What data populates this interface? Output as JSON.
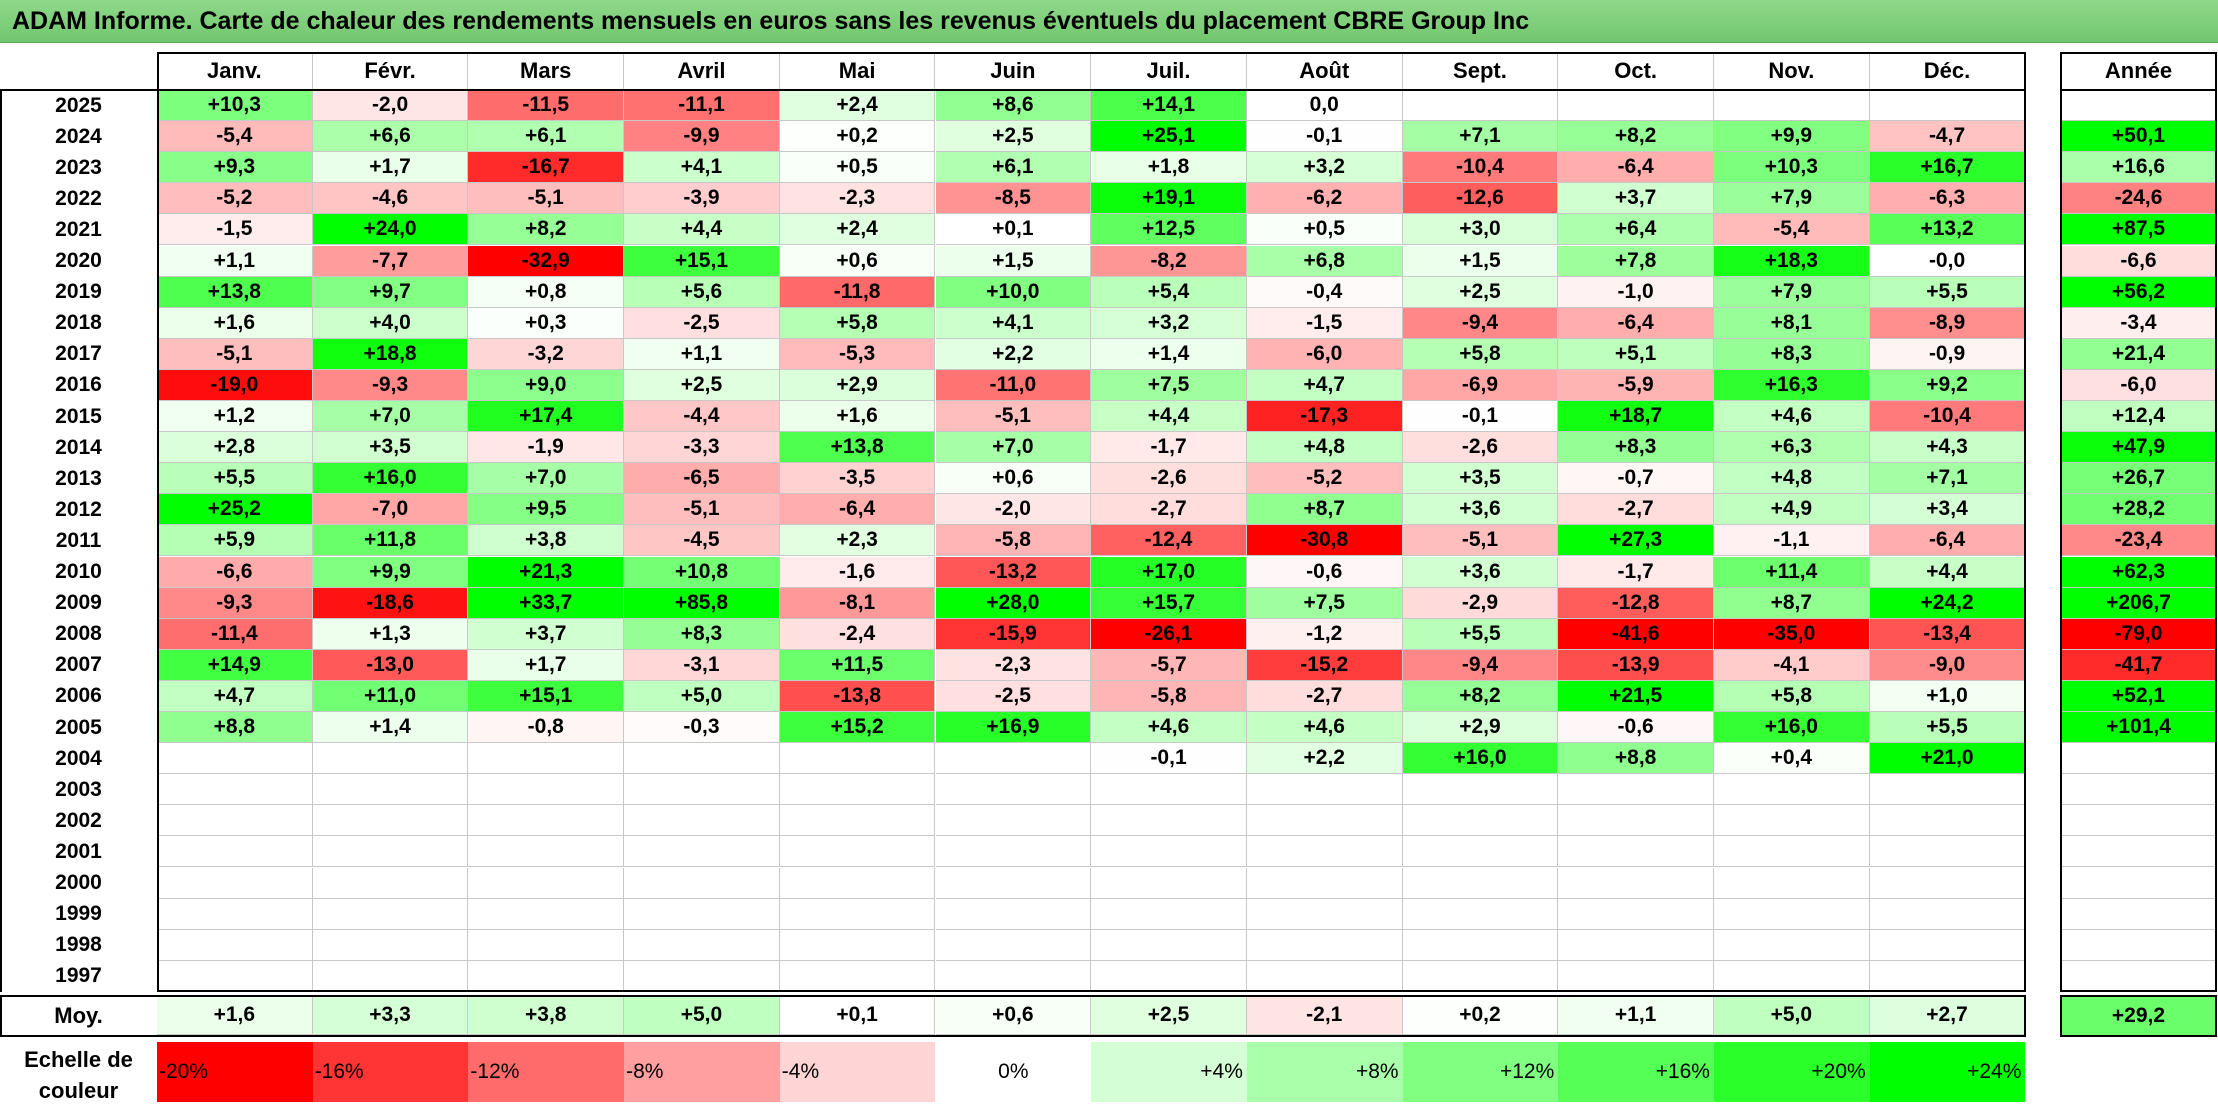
{
  "title": "ADAM Informe. Carte de chaleur des rendements mensuels en euros sans les revenus éventuels du placement CBRE Group Inc",
  "chart_data": {
    "type": "heatmap",
    "title": "ADAM Informe. Carte de chaleur des rendements mensuels en euros sans les revenus éventuels du placement CBRE Group Inc",
    "months": [
      "Janv.",
      "Févr.",
      "Mars",
      "Avril",
      "Mai",
      "Juin",
      "Juil.",
      "Août",
      "Sept.",
      "Oct.",
      "Nov.",
      "Déc."
    ],
    "year_header": "Année",
    "rows": [
      {
        "year": "2025",
        "values": [
          "+10,3",
          "-2,0",
          "-11,5",
          "-11,1",
          "+2,4",
          "+8,6",
          "+14,1",
          "0,0",
          "",
          "",
          "",
          ""
        ],
        "annual": ""
      },
      {
        "year": "2024",
        "values": [
          "-5,4",
          "+6,6",
          "+6,1",
          "-9,9",
          "+0,2",
          "+2,5",
          "+25,1",
          "-0,1",
          "+7,1",
          "+8,2",
          "+9,9",
          "-4,7"
        ],
        "annual": "+50,1"
      },
      {
        "year": "2023",
        "values": [
          "+9,3",
          "+1,7",
          "-16,7",
          "+4,1",
          "+0,5",
          "+6,1",
          "+1,8",
          "+3,2",
          "-10,4",
          "-6,4",
          "+10,3",
          "+16,7"
        ],
        "annual": "+16,6"
      },
      {
        "year": "2022",
        "values": [
          "-5,2",
          "-4,6",
          "-5,1",
          "-3,9",
          "-2,3",
          "-8,5",
          "+19,1",
          "-6,2",
          "-12,6",
          "+3,7",
          "+7,9",
          "-6,3"
        ],
        "annual": "-24,6"
      },
      {
        "year": "2021",
        "values": [
          "-1,5",
          "+24,0",
          "+8,2",
          "+4,4",
          "+2,4",
          "+0,1",
          "+12,5",
          "+0,5",
          "+3,0",
          "+6,4",
          "-5,4",
          "+13,2"
        ],
        "annual": "+87,5"
      },
      {
        "year": "2020",
        "values": [
          "+1,1",
          "-7,7",
          "-32,9",
          "+15,1",
          "+0,6",
          "+1,5",
          "-8,2",
          "+6,8",
          "+1,5",
          "+7,8",
          "+18,3",
          "-0,0"
        ],
        "annual": "-6,6"
      },
      {
        "year": "2019",
        "values": [
          "+13,8",
          "+9,7",
          "+0,8",
          "+5,6",
          "-11,8",
          "+10,0",
          "+5,4",
          "-0,4",
          "+2,5",
          "-1,0",
          "+7,9",
          "+5,5"
        ],
        "annual": "+56,2"
      },
      {
        "year": "2018",
        "values": [
          "+1,6",
          "+4,0",
          "+0,3",
          "-2,5",
          "+5,8",
          "+4,1",
          "+3,2",
          "-1,5",
          "-9,4",
          "-6,4",
          "+8,1",
          "-8,9"
        ],
        "annual": "-3,4"
      },
      {
        "year": "2017",
        "values": [
          "-5,1",
          "+18,8",
          "-3,2",
          "+1,1",
          "-5,3",
          "+2,2",
          "+1,4",
          "-6,0",
          "+5,8",
          "+5,1",
          "+8,3",
          "-0,9"
        ],
        "annual": "+21,4"
      },
      {
        "year": "2016",
        "values": [
          "-19,0",
          "-9,3",
          "+9,0",
          "+2,5",
          "+2,9",
          "-11,0",
          "+7,5",
          "+4,7",
          "-6,9",
          "-5,9",
          "+16,3",
          "+9,2"
        ],
        "annual": "-6,0"
      },
      {
        "year": "2015",
        "values": [
          "+1,2",
          "+7,0",
          "+17,4",
          "-4,4",
          "+1,6",
          "-5,1",
          "+4,4",
          "-17,3",
          "-0,1",
          "+18,7",
          "+4,6",
          "-10,4"
        ],
        "annual": "+12,4"
      },
      {
        "year": "2014",
        "values": [
          "+2,8",
          "+3,5",
          "-1,9",
          "-3,3",
          "+13,8",
          "+7,0",
          "-1,7",
          "+4,8",
          "-2,6",
          "+8,3",
          "+6,3",
          "+4,3"
        ],
        "annual": "+47,9"
      },
      {
        "year": "2013",
        "values": [
          "+5,5",
          "+16,0",
          "+7,0",
          "-6,5",
          "-3,5",
          "+0,6",
          "-2,6",
          "-5,2",
          "+3,5",
          "-0,7",
          "+4,8",
          "+7,1"
        ],
        "annual": "+26,7"
      },
      {
        "year": "2012",
        "values": [
          "+25,2",
          "-7,0",
          "+9,5",
          "-5,1",
          "-6,4",
          "-2,0",
          "-2,7",
          "+8,7",
          "+3,6",
          "-2,7",
          "+4,9",
          "+3,4"
        ],
        "annual": "+28,2"
      },
      {
        "year": "2011",
        "values": [
          "+5,9",
          "+11,8",
          "+3,8",
          "-4,5",
          "+2,3",
          "-5,8",
          "-12,4",
          "-30,8",
          "-5,1",
          "+27,3",
          "-1,1",
          "-6,4"
        ],
        "annual": "-23,4"
      },
      {
        "year": "2010",
        "values": [
          "-6,6",
          "+9,9",
          "+21,3",
          "+10,8",
          "-1,6",
          "-13,2",
          "+17,0",
          "-0,6",
          "+3,6",
          "-1,7",
          "+11,4",
          "+4,4"
        ],
        "annual": "+62,3"
      },
      {
        "year": "2009",
        "values": [
          "-9,3",
          "-18,6",
          "+33,7",
          "+85,8",
          "-8,1",
          "+28,0",
          "+15,7",
          "+7,5",
          "-2,9",
          "-12,8",
          "+8,7",
          "+24,2"
        ],
        "annual": "+206,7"
      },
      {
        "year": "2008",
        "values": [
          "-11,4",
          "+1,3",
          "+3,7",
          "+8,3",
          "-2,4",
          "-15,9",
          "-26,1",
          "-1,2",
          "+5,5",
          "-41,6",
          "-35,0",
          "-13,4"
        ],
        "annual": "-79,0"
      },
      {
        "year": "2007",
        "values": [
          "+14,9",
          "-13,0",
          "+1,7",
          "-3,1",
          "+11,5",
          "-2,3",
          "-5,7",
          "-15,2",
          "-9,4",
          "-13,9",
          "-4,1",
          "-9,0"
        ],
        "annual": "-41,7"
      },
      {
        "year": "2006",
        "values": [
          "+4,7",
          "+11,0",
          "+15,1",
          "+5,0",
          "-13,8",
          "-2,5",
          "-5,8",
          "-2,7",
          "+8,2",
          "+21,5",
          "+5,8",
          "+1,0"
        ],
        "annual": "+52,1"
      },
      {
        "year": "2005",
        "values": [
          "+8,8",
          "+1,4",
          "-0,8",
          "-0,3",
          "+15,2",
          "+16,9",
          "+4,6",
          "+4,6",
          "+2,9",
          "-0,6",
          "+16,0",
          "+5,5"
        ],
        "annual": "+101,4"
      },
      {
        "year": "2004",
        "values": [
          "",
          "",
          "",
          "",
          "",
          "",
          "-0,1",
          "+2,2",
          "+16,0",
          "+8,8",
          "+0,4",
          "+21,0"
        ],
        "annual": ""
      },
      {
        "year": "2003",
        "values": [
          "",
          "",
          "",
          "",
          "",
          "",
          "",
          "",
          "",
          "",
          "",
          ""
        ],
        "annual": ""
      },
      {
        "year": "2002",
        "values": [
          "",
          "",
          "",
          "",
          "",
          "",
          "",
          "",
          "",
          "",
          "",
          ""
        ],
        "annual": ""
      },
      {
        "year": "2001",
        "values": [
          "",
          "",
          "",
          "",
          "",
          "",
          "",
          "",
          "",
          "",
          "",
          ""
        ],
        "annual": ""
      },
      {
        "year": "2000",
        "values": [
          "",
          "",
          "",
          "",
          "",
          "",
          "",
          "",
          "",
          "",
          "",
          ""
        ],
        "annual": ""
      },
      {
        "year": "1999",
        "values": [
          "",
          "",
          "",
          "",
          "",
          "",
          "",
          "",
          "",
          "",
          "",
          ""
        ],
        "annual": ""
      },
      {
        "year": "1998",
        "values": [
          "",
          "",
          "",
          "",
          "",
          "",
          "",
          "",
          "",
          "",
          "",
          ""
        ],
        "annual": ""
      },
      {
        "year": "1997",
        "values": [
          "",
          "",
          "",
          "",
          "",
          "",
          "",
          "",
          "",
          "",
          "",
          ""
        ],
        "annual": ""
      }
    ],
    "average": {
      "label": "Moy.",
      "values": [
        "+1,6",
        "+3,3",
        "+3,8",
        "+5,0",
        "+0,1",
        "+0,6",
        "+2,5",
        "-2,1",
        "+0,2",
        "+1,1",
        "+5,0",
        "+2,7"
      ],
      "annual": "+29,2"
    },
    "color_scale": {
      "label": "Echelle de couleur",
      "steps": [
        "-20%",
        "-16%",
        "-12%",
        "-8%",
        "-4%",
        "0%",
        "+4%",
        "+8%",
        "+12%",
        "+16%",
        "+20%",
        "+24%"
      ],
      "colors": [
        "#ff0000",
        "#ff3535",
        "#ff6a6a",
        "#ff9f9f",
        "#ffd4d4",
        "#ffffff",
        "#d4ffd4",
        "#aaffaa",
        "#80ff80",
        "#55ff55",
        "#2aff2a",
        "#00ff00"
      ]
    },
    "colors": {
      "negative": "#ff0000",
      "neutral": "#ffffff",
      "positive": "#00ff00",
      "title_bg": "#7fcf7a"
    }
  }
}
